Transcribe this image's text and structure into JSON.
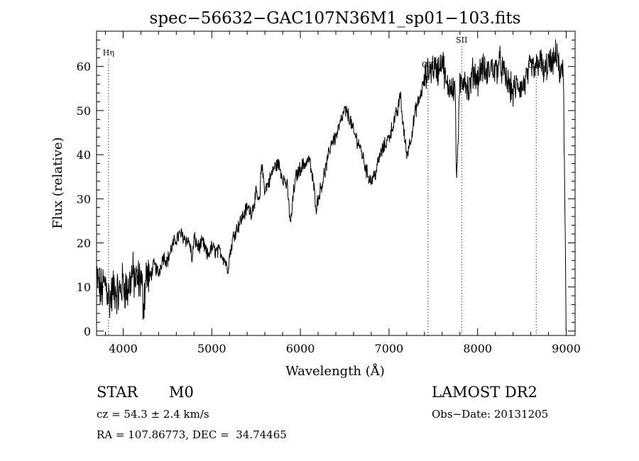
{
  "chart_data": {
    "type": "line",
    "title": "spec−56632−GAC107N36M1_sp01−103.fits",
    "xlabel": "Wavelength (Å)",
    "ylabel": "Flux (relative)",
    "xlim": [
      3700,
      9100
    ],
    "ylim": [
      -1,
      68
    ],
    "xticks": [
      "4000",
      "5000",
      "6000",
      "7000",
      "8000",
      "9000"
    ],
    "yticks": [
      "0",
      "10",
      "20",
      "30",
      "40",
      "50",
      "60"
    ],
    "series": [
      {
        "x": [
          3700,
          3750,
          3800,
          3850,
          3900,
          3950,
          4000,
          4050,
          4100,
          4150,
          4200,
          4230,
          4260,
          4300,
          4350,
          4400,
          4450,
          4500,
          4550,
          4600,
          4650,
          4700,
          4750,
          4780,
          4800,
          4850,
          4900,
          4950,
          5000,
          5050,
          5100,
          5150,
          5180,
          5200,
          5250,
          5300,
          5350,
          5400,
          5450,
          5500,
          5540,
          5560,
          5600,
          5650,
          5700,
          5750,
          5800,
          5850,
          5890,
          5920,
          5950,
          6000,
          6050,
          6100,
          6150,
          6180,
          6200,
          6250,
          6300,
          6350,
          6400,
          6450,
          6500,
          6540,
          6560,
          6600,
          6650,
          6700,
          6750,
          6800,
          6850,
          6900,
          6950,
          7000,
          7050,
          7080,
          7100,
          7130,
          7150,
          7200,
          7250,
          7300,
          7350,
          7400,
          7450,
          7500,
          7550,
          7600,
          7630,
          7650,
          7700,
          7750,
          7760,
          7800,
          7850,
          7900,
          7950,
          8000,
          8050,
          8100,
          8150,
          8200,
          8250,
          8300,
          8350,
          8400,
          8450,
          8500,
          8550,
          8600,
          8650,
          8700,
          8750,
          8800,
          8850,
          8900,
          8930,
          8950,
          8970,
          9000
        ],
        "y": [
          12,
          9,
          11,
          7,
          10,
          8,
          11,
          9,
          13,
          11,
          12,
          6,
          13,
          12,
          15,
          13,
          17,
          16,
          19,
          21,
          22,
          21,
          20,
          16,
          21,
          19,
          20,
          17,
          19,
          18,
          18,
          16,
          14,
          17,
          22,
          24,
          26,
          28,
          27,
          31,
          29,
          38,
          32,
          34,
          37,
          38,
          35,
          33,
          24,
          31,
          35,
          37,
          38,
          39,
          33,
          28,
          30,
          34,
          38,
          43,
          44,
          47,
          50,
          49,
          48,
          45,
          43,
          40,
          36,
          34,
          36,
          40,
          42,
          44,
          47,
          49,
          50,
          54,
          48,
          40,
          44,
          50,
          53,
          57,
          59,
          60,
          59,
          62,
          58,
          55,
          56,
          55,
          33,
          55,
          58,
          54,
          59,
          57,
          60,
          58,
          60,
          59,
          61,
          58,
          56,
          54,
          56,
          55,
          57,
          60,
          59,
          62,
          58,
          61,
          60,
          64,
          56,
          62,
          55,
          0
        ]
      }
    ],
    "lines": [
      {
        "label": "Hη",
        "x": 3835
      },
      {
        "label": "OII",
        "x": 7440
      },
      {
        "label": "SII",
        "x": 7820
      },
      {
        "label": "CaII",
        "x": 8662
      }
    ]
  },
  "info": {
    "class": "STAR",
    "subclass": "M0",
    "survey": "LAMOST DR2",
    "cz": "cz = 54.3 ± 2.4 km/s",
    "obs_date": "Obs−Date: 20131205",
    "coords": "RA = 107.86773, DEC =  34.74465"
  }
}
